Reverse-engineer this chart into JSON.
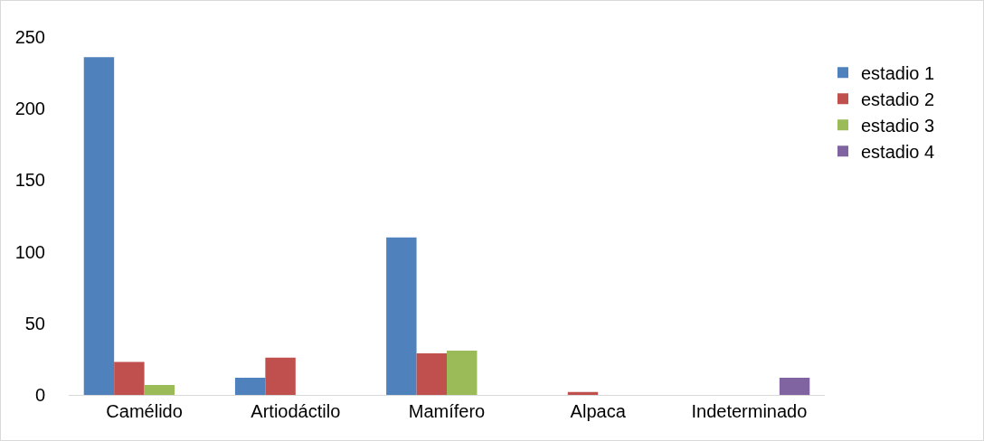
{
  "chart_data": {
    "type": "bar",
    "categories": [
      "Camélido",
      "Artiodáctilo",
      "Mamífero",
      "Alpaca",
      "Indeterminado"
    ],
    "series": [
      {
        "name": "estadio 1",
        "color": "#4f81bd",
        "values": [
          236,
          12,
          110,
          null,
          null
        ]
      },
      {
        "name": "estadio 2",
        "color": "#c0504d",
        "values": [
          23,
          26,
          29,
          2,
          null
        ]
      },
      {
        "name": "estadio 3",
        "color": "#9bbb59",
        "values": [
          7,
          null,
          31,
          null,
          null
        ]
      },
      {
        "name": "estadio 4",
        "color": "#8064a2",
        "values": [
          null,
          null,
          null,
          null,
          12
        ]
      }
    ],
    "ylim": [
      0,
      250
    ],
    "yticks": [
      0,
      50,
      100,
      150,
      200,
      250
    ],
    "grid": false,
    "legend": "right"
  }
}
